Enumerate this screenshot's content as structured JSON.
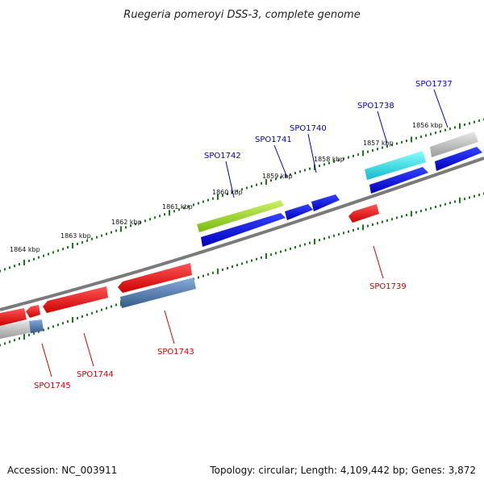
{
  "title": "Ruegeria pomeroyi DSS-3, complete genome",
  "footer": {
    "accession": "Accession: NC_003911",
    "topology": "Topology: circular; Length: 4,109,442 bp; Genes: 3,872"
  },
  "scale_labels": [
    "1864 kbp",
    "1863 kbp",
    "1862 kbp",
    "1861 kbp",
    "1860 kbp",
    "1859 kbp",
    "1858 kbp",
    "1857 kbp",
    "1856 kbp"
  ],
  "genes": [
    {
      "label": "SPO1737",
      "strand": "forward",
      "color": "#0000cc"
    },
    {
      "label": "SPO1738",
      "strand": "forward",
      "color": "#0000cc"
    },
    {
      "label": "SPO1739",
      "strand": "reverse",
      "color": "#cc0000"
    },
    {
      "label": "SPO1740",
      "strand": "forward",
      "color": "#0000cc"
    },
    {
      "label": "SPO1741",
      "strand": "forward",
      "color": "#0000cc"
    },
    {
      "label": "SPO1742",
      "strand": "forward",
      "color": "#0000cc"
    },
    {
      "label": "SPO1743",
      "strand": "reverse",
      "color": "#cc0000"
    },
    {
      "label": "SPO1744",
      "strand": "reverse",
      "color": "#cc0000"
    },
    {
      "label": "SPO1745",
      "strand": "reverse",
      "color": "#cc0000"
    }
  ],
  "colors": {
    "backbone": "#7a7a7a",
    "forward_gene": "#0000ee",
    "reverse_gene": "#ee0000",
    "tick": "#1a7a1a",
    "feature_green": "#99dd22",
    "feature_cyan": "#22dddd",
    "feature_steelblue": "#4477aa",
    "feature_grey": "#bbbbbb"
  }
}
